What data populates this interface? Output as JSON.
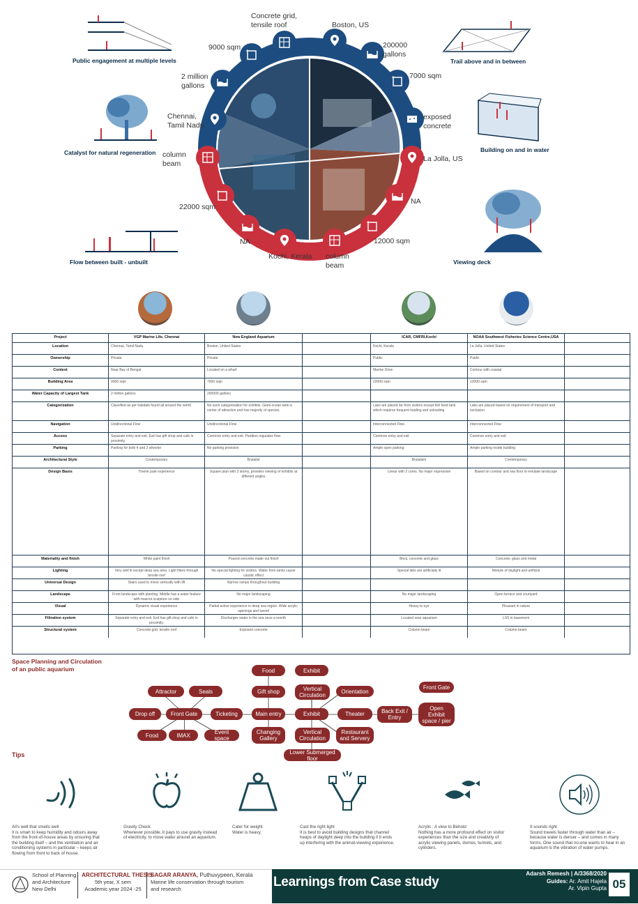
{
  "concepts": {
    "c1": "Public engagement at multiple levels",
    "c2": "Catalyst for natural regeneration",
    "c3": "Flow between built - unbuilt",
    "c4": "Trail above and in between",
    "c5": "Building on and in water",
    "c6": "Viewing deck"
  },
  "ring_labels": {
    "l1": "Concrete grid,\ntensile roof",
    "l2": "Boston, US",
    "l3": "200000\ngallons",
    "l4": "7000 sqm",
    "l5": "exposed\nconcrete",
    "l6": "La Jolla, US",
    "l7": "NA",
    "l8": "12000 sqm",
    "l9": "column\nbeam",
    "l10": "Kochi, Kerala",
    "l11": "NA",
    "l12": "22000 sqm",
    "l13": "column\nbeam",
    "l14": "Chennai,\nTamil Nadu",
    "l15": "2 million\ngallons",
    "l16": "9000 sqm"
  },
  "table": {
    "headers": [
      "Project",
      "VGP Marine Life, Chennai",
      "New England Aquarium",
      "",
      "ICAR, CMFRI,Kochi",
      "NOAA Southwest Fisheries Science Centre,USA",
      ""
    ],
    "rows": [
      {
        "label": "Location",
        "cells": [
          "Chennai, Tamil Nadu",
          "Boston, United States",
          "",
          "Kochi, Kerala",
          "La Jolla, United States",
          ""
        ]
      },
      {
        "label": "Ownership",
        "cells": [
          "Private",
          "Private",
          "",
          "Public",
          "Public",
          ""
        ]
      },
      {
        "label": "Context",
        "cells": [
          "Near Bay of Bengal",
          "Located on a wharf",
          "",
          "Marine Drive",
          "Contour with coastal",
          ""
        ]
      },
      {
        "label": "Building Area",
        "cells": [
          "9000 sqm",
          "7000 sqm",
          "",
          "22000 sqm",
          "12000 sqm",
          ""
        ]
      },
      {
        "label": "Water Capacity of Largest Tank",
        "cells": [
          "2 million gallons",
          "200000 gallons",
          "",
          "",
          "",
          ""
        ]
      },
      {
        "label": "Categorization",
        "cells": [
          "Classified as per habitats found all around the world",
          "No such categorization for exhibits. Giant ocean tank is center of attraction and has majority of species.",
          "",
          "Labs are placed far from visitors except fish feed tank which requires frequent loading and unloading",
          "Labs are placed based on requirement of transport and seclusion",
          ""
        ]
      },
      {
        "label": "Navigation",
        "cells": [
          "Unidirectional Flow",
          "Unidirectional Flow",
          "",
          "Interconnected Flow",
          "Interconnected Flow",
          ""
        ]
      },
      {
        "label": "Access",
        "cells": [
          "Separate entry and exit. Exit has gift shop and cafe in proximity.",
          "Common entry and exit. Partition regulates flow.",
          "",
          "Common entry and exit",
          "Common entry and exit",
          ""
        ]
      },
      {
        "label": "Parking",
        "cells": [
          "Parking for both 4 and 2 wheeler",
          "No parking provision",
          "",
          "Ample open parking",
          "Ample parking inside building",
          ""
        ]
      },
      {
        "label": "Architectural Style",
        "cells": [
          "Contemporary",
          "Brutalist",
          "",
          "Brutalism",
          "Contemporary",
          ""
        ]
      },
      {
        "label": "Design Basis",
        "cells": [
          "Theme park experience",
          "Square plan with 3 storey, provides viewing of exhibits at different angles",
          "",
          "Linear with 2 cores. No major expression",
          "Based on contour and sea floor to emulate landscape",
          ""
        ]
      },
      {
        "label": "Materiality and finish",
        "cells": [
          "White paint finish",
          "Poured concrete made out finish",
          "",
          "Brick, concrete and glass",
          "Concrete, glass and metal",
          ""
        ]
      },
      {
        "label": "Lighting",
        "cells": [
          "Very well lit except deep sea area. Light filters through tensile roof",
          "No special lighting for visitors. Water from tanks cause caustic effect",
          "",
          "Special labs are artificially lit",
          "Mixture of daylight and artificial",
          ""
        ]
      },
      {
        "label": "Universal Design",
        "cells": [
          "Stairs used to move vertically with lift",
          "Narrow ramps throughout building",
          "",
          "",
          "",
          ""
        ]
      },
      {
        "label": "Landscape",
        "cells": [
          "Front landscape with planting. Middle has a water feature with mascot sculpture on side",
          "No major landscaping",
          "",
          "No major landscaping",
          "Open terrace and courtyard",
          ""
        ]
      },
      {
        "label": "Visual",
        "cells": [
          "Dynamic visual experience",
          "Partial active experience in deep sea region. Wide acrylic openings and tunnel",
          "",
          "Heavy to eye",
          "Pleasant in nature",
          ""
        ]
      },
      {
        "label": "Filtration system",
        "cells": [
          "Separate entry and exit. Exit has gift shop and cafe in proximity.",
          "Discharges water in the sea once a month",
          "",
          "Located near aquarium",
          "LSS in basement",
          ""
        ]
      },
      {
        "label": "Structural system",
        "cells": [
          "Concrete grid, tensile roof",
          "Exposed concrete",
          "",
          "Column beam",
          "Column beam",
          ""
        ]
      }
    ]
  },
  "flow": {
    "title": "Space Planning and Circulation\nof an public aquarium",
    "nodes": {
      "food_top": "Food",
      "exhibit_top": "Exhibit",
      "attractor": "Attractor",
      "seals": "Seals",
      "gift_shop": "Gift shop",
      "vert_top": "Vertical\nCirculation",
      "orientation": "Orientation",
      "front_gate_r": "Front Gate",
      "drop_off": "Drop off",
      "front_gate": "Front Gate",
      "ticketing": "Ticketing",
      "main_entry": "Main entry",
      "exhibit": "Exhibit",
      "theater": "Theater",
      "back_exit": "Back Exit /\nEntry",
      "open_exhibit": "Open\nExhibit\nspace / pier",
      "food": "Food",
      "imax": "IMAX",
      "event_space": "Event space",
      "changing_gallery": "Changing\nGallery",
      "vert_bot": "Vertical\nCirculation",
      "restaurant": "Restaurant\nand Servery",
      "lower_floor": "Lower Submerged floor"
    }
  },
  "tips": {
    "title": "Tips",
    "items": [
      {
        "h": "All's well that smells well",
        "t": "It is smart to keep humidity and odours away from the front-of-house areas by ensuring that the building itself – and the ventilation and air conditioning systems in particular – keeps air flowing from front to back of house."
      },
      {
        "h": "Gravity Check",
        "t": "Whenever possible, it pays to use gravity instead of electricity, to move water around an aquarium."
      },
      {
        "h": "Cater for weight",
        "t": "Water is heavy."
      },
      {
        "h": "Cast the right light",
        "t": "It is best to avoid building designs that channel heaps of daylight deep into the building if it ends up interfering with the animal-viewing experience."
      },
      {
        "h": "Acrylic : A view to Behold",
        "t": "Nothing has a more profound effect on visitor experiences than the size and creativity of acrylic viewing panels, domes, tunnels, and cylinders."
      },
      {
        "h": "It sounds right",
        "t": "Sound travels faster through water than air – because water is denser – and comes in many forms. One sound that no-one wants to hear in an aquarium is the vibration of water pumps."
      }
    ]
  },
  "footer": {
    "school": "School of Planning\nand Architecture\nNew Delhi",
    "thesis_title": "ARCHITECTURAL THESIS",
    "thesis_sub": "5th year, X sem\nAcademic year 2024 -25",
    "project_title": "SAGAR ARANYA,",
    "project_loc": " Puthuvypeen, Kerala",
    "project_sub": "Marine life conservation through tourism\nand research",
    "sheet_title": "Learnings from Case study",
    "student": "Adarsh Remesh | A/3368/2020",
    "guides_label": "Guides:",
    "guide1": " Ar. Amit Hajela",
    "guide2": "Ar. Vipin Gupta",
    "page": "05"
  },
  "colors": {
    "navy": "#0b2c4a",
    "blue": "#1d4d80",
    "red": "#c9313d",
    "maroon": "#8b2a2a",
    "teal": "#1a4a55"
  }
}
